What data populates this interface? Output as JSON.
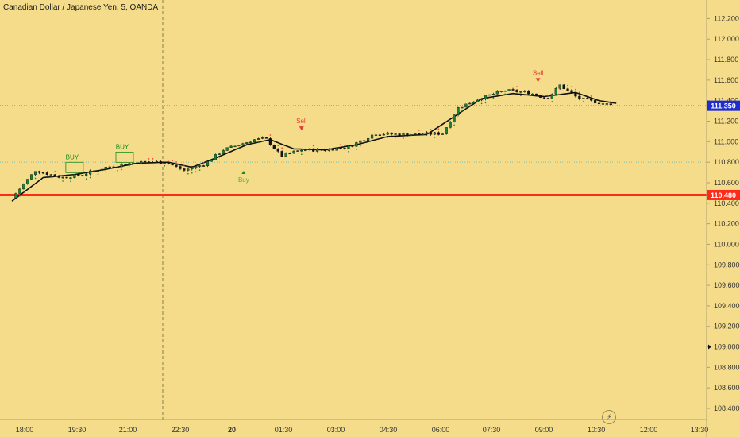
{
  "header": {
    "title": "Canadian Dollar / Japanese Yen, 5, OANDA"
  },
  "colors": {
    "background": "#f5dc8a",
    "axis_line": "#b0a070",
    "candle_up": "#1a7f37",
    "candle_down": "#111111",
    "ma_line": "#111111",
    "current_price_tag": "#1f2ccf",
    "support_line": "#ff2a1a",
    "buy_text": "#1a8a1a",
    "sell_text": "#e53935"
  },
  "chart_data": {
    "type": "candlestick",
    "title": "Canadian Dollar / Japanese Yen, 5, OANDA",
    "ylim": [
      108.3,
      112.35
    ],
    "y_ticks": [
      "112.200",
      "112.000",
      "111.800",
      "111.600",
      "111.400",
      "111.200",
      "111.000",
      "110.800",
      "110.600",
      "110.400",
      "110.200",
      "110.000",
      "109.800",
      "109.600",
      "109.400",
      "109.200",
      "109.000",
      "108.800",
      "108.600",
      "108.400"
    ],
    "x_ticks": [
      "18:00",
      "19:30",
      "21:00",
      "22:30",
      "20",
      "01:30",
      "03:00",
      "04:30",
      "06:00",
      "07:30",
      "09:00",
      "10:30",
      "12:00",
      "13:30"
    ],
    "current_price": {
      "value": 111.35,
      "label": "111.350"
    },
    "horizontal_level": {
      "value": 110.48,
      "label": "110.480"
    },
    "level_marker": {
      "value": 109.0
    },
    "reference_line": {
      "value": 110.8
    },
    "price_path": [
      [
        0,
        110.45
      ],
      [
        1.5,
        110.72
      ],
      [
        3.2,
        110.65
      ],
      [
        4.5,
        110.68
      ],
      [
        6,
        110.75
      ],
      [
        8,
        110.8
      ],
      [
        9.8,
        110.8
      ],
      [
        11,
        110.72
      ],
      [
        12.3,
        110.78
      ],
      [
        13.5,
        110.92
      ],
      [
        15.5,
        111.02
      ],
      [
        16.2,
        111.03
      ],
      [
        17.2,
        110.86
      ],
      [
        18.5,
        110.92
      ],
      [
        20,
        110.92
      ],
      [
        21.5,
        110.95
      ],
      [
        23.2,
        111.08
      ],
      [
        25,
        111.07
      ],
      [
        27.5,
        111.08
      ],
      [
        28.5,
        111.33
      ],
      [
        30,
        111.43
      ],
      [
        31.5,
        111.5
      ],
      [
        33,
        111.48
      ],
      [
        34.2,
        111.42
      ],
      [
        35,
        111.55
      ],
      [
        36.2,
        111.42
      ],
      [
        37.5,
        111.38
      ],
      [
        38.4,
        111.35
      ]
    ],
    "ma_path": [
      [
        0,
        110.42
      ],
      [
        2,
        110.65
      ],
      [
        4,
        110.68
      ],
      [
        6,
        110.73
      ],
      [
        8,
        110.79
      ],
      [
        10,
        110.8
      ],
      [
        11.5,
        110.75
      ],
      [
        13,
        110.84
      ],
      [
        15,
        110.97
      ],
      [
        16.5,
        111.02
      ],
      [
        18,
        110.93
      ],
      [
        20,
        110.92
      ],
      [
        22,
        110.97
      ],
      [
        24,
        111.05
      ],
      [
        26.5,
        111.07
      ],
      [
        28,
        111.22
      ],
      [
        30,
        111.42
      ],
      [
        32,
        111.47
      ],
      [
        34,
        111.44
      ],
      [
        36,
        111.48
      ],
      [
        37.5,
        111.4
      ],
      [
        38.8,
        111.37
      ]
    ],
    "signals": [
      {
        "text": "BUY",
        "type": "buy",
        "t": 4,
        "price": 110.83,
        "label_pos": "above"
      },
      {
        "text": "BUY",
        "type": "buy",
        "t": 7.2,
        "price": 110.93,
        "label_pos": "above"
      },
      {
        "text": "Buy",
        "type": "buy",
        "t": 14.8,
        "price": 110.67,
        "label_pos": "below"
      },
      {
        "text": "Sell",
        "type": "sell",
        "t": 18.5,
        "price": 111.18,
        "label_pos": "above"
      },
      {
        "text": "Sell",
        "type": "sell",
        "t": 33.6,
        "price": 111.65,
        "label_pos": "above"
      }
    ]
  }
}
